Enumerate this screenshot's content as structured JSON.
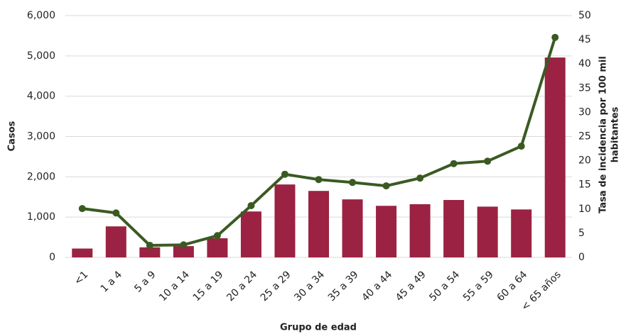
{
  "chart_data": {
    "type": "bar-line",
    "xlabel": "Grupo de edad",
    "ylabel": "Casos",
    "y2label": [
      "Tasa de incidencia  por 100 mil",
      "habitantes"
    ],
    "categories": [
      "<1",
      "1 a 4",
      "5 a 9",
      "10 a 14",
      "15 a 19",
      "20 a 24",
      "25 a 29",
      "30 a 34",
      "35 a 39",
      "40 a 44",
      "45 a 49",
      "50 a 54",
      "55 a 59",
      "60 a 64",
      "< 65 años"
    ],
    "series": [
      {
        "type": "bar",
        "color": "#9b2242",
        "values": [
          220,
          770,
          250,
          280,
          475,
          1140,
          1810,
          1650,
          1440,
          1280,
          1320,
          1425,
          1260,
          1190,
          4960
        ]
      },
      {
        "type": "line",
        "axis": "y2",
        "color": "#3a5a22",
        "values": [
          10.1,
          9.2,
          2.5,
          2.6,
          4.5,
          10.7,
          17.2,
          16.1,
          15.5,
          14.8,
          16.4,
          19.4,
          19.9,
          23.0,
          45.5
        ]
      }
    ],
    "ylim": [
      0,
      6000
    ],
    "yticks": [
      0,
      {
        "value": 1000,
        "label": "1,000"
      },
      {
        "value": 2000,
        "label": "2,000"
      },
      {
        "value": 3000,
        "label": "3,000"
      },
      {
        "value": 4000,
        "label": "4,000"
      },
      {
        "value": 5000,
        "label": "5,000"
      },
      {
        "value": 6000,
        "label": "6,000"
      }
    ],
    "y2lim": [
      0,
      50
    ],
    "y2ticks": [
      0,
      5,
      10,
      15,
      20,
      25,
      30,
      35,
      40,
      45,
      50
    ],
    "grid": true
  }
}
